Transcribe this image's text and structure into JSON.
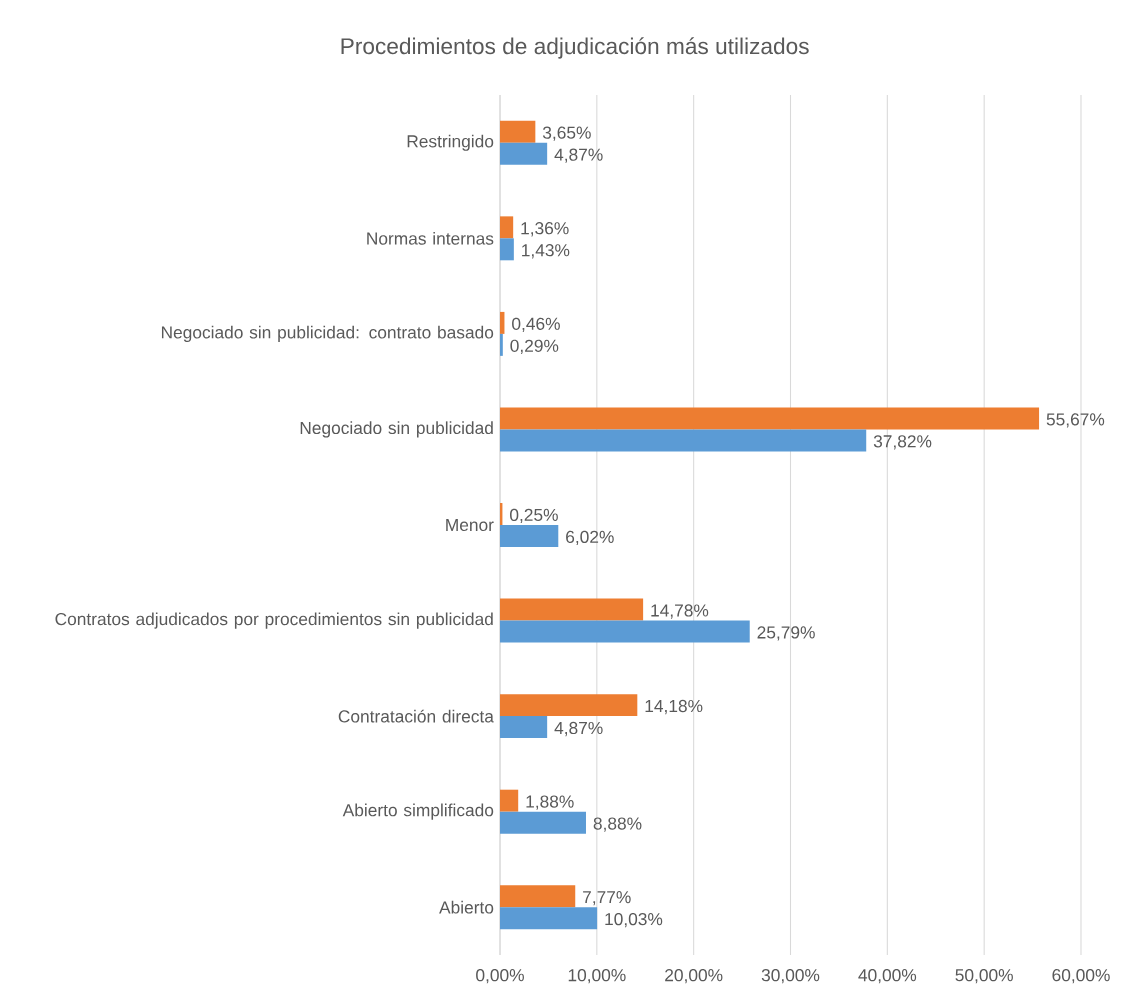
{
  "chart_data": {
    "type": "bar",
    "orientation": "horizontal",
    "title": "Procedimientos de adjudicación  más utilizados",
    "categories": [
      "Restringido",
      "Normas internas",
      "Negociado sin publicidad: contrato basado",
      "Negociado sin publicidad",
      "Menor",
      "Contratos adjudicados por procedimientos sin publicidad",
      "Contratación directa",
      "Abierto simplificado",
      "Abierto"
    ],
    "series": [
      {
        "color": "#ed7d31",
        "values": [
          3.65,
          1.36,
          0.46,
          55.67,
          0.25,
          14.78,
          14.18,
          1.88,
          7.77
        ],
        "value_labels": [
          "3,65%",
          "1,36%",
          "0,46%",
          "55,67%",
          "0,25%",
          "14,78%",
          "14,18%",
          "1,88%",
          "7,77%"
        ]
      },
      {
        "color": "#5b9bd5",
        "values": [
          4.87,
          1.43,
          0.29,
          37.82,
          6.02,
          25.79,
          4.87,
          8.88,
          10.03
        ],
        "value_labels": [
          "4,87%",
          "1,43%",
          "0,29%",
          "37,82%",
          "6,02%",
          "25,79%",
          "4,87%",
          "8,88%",
          "10,03%"
        ]
      }
    ],
    "xlim": [
      0,
      60
    ],
    "xticks": [
      {
        "value": 0,
        "label": "0,00%"
      },
      {
        "value": 10,
        "label": "10,00%"
      },
      {
        "value": 20,
        "label": "20,00%"
      },
      {
        "value": 30,
        "label": "30,00%"
      },
      {
        "value": 40,
        "label": "40,00%"
      },
      {
        "value": 50,
        "label": "50,00%"
      },
      {
        "value": 60,
        "label": "60,00%"
      }
    ],
    "grid": "x"
  }
}
